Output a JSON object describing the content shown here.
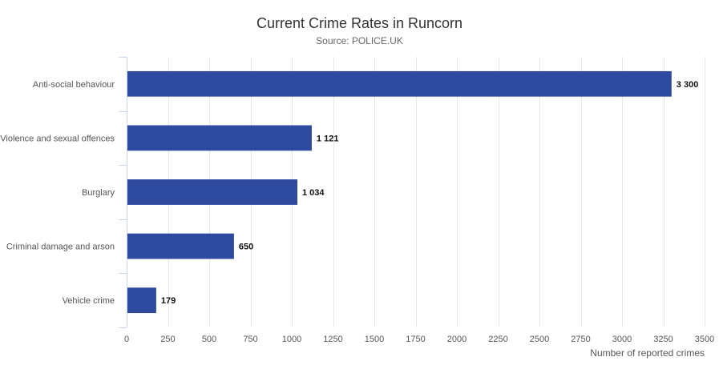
{
  "chart_data": {
    "type": "bar",
    "orientation": "horizontal",
    "title": "Current Crime Rates in Runcorn",
    "subtitle": "Source: POLICE.UK",
    "xlabel": "Number of reported crimes",
    "ylabel": "",
    "categories": [
      "Anti-social behaviour",
      "Violence and sexual offences",
      "Burglary",
      "Criminal damage and arson",
      "Vehicle crime"
    ],
    "values": [
      3300,
      1121,
      1034,
      650,
      179
    ],
    "data_labels": [
      "3 300",
      "1 121",
      "1 034",
      "650",
      "179"
    ],
    "xlim": [
      0,
      3500
    ],
    "ticks": [
      0,
      250,
      500,
      750,
      1000,
      1250,
      1500,
      1750,
      2000,
      2250,
      2500,
      2750,
      3000,
      3250,
      3500
    ],
    "grid": true,
    "legend": "none",
    "bar_color": "#2e4a9e"
  }
}
